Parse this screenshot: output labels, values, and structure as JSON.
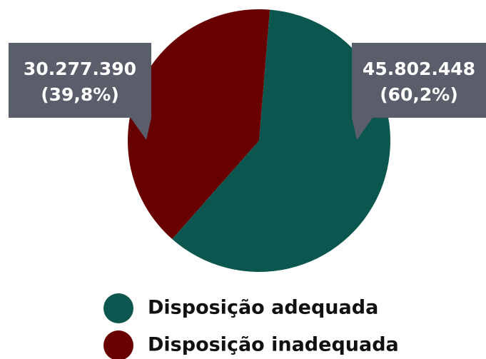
{
  "chart_data": {
    "type": "pie",
    "categories": [
      "Disposição adequada",
      "Disposição inadequada"
    ],
    "values": [
      45802448,
      30277390
    ],
    "value_labels": [
      "45.802.448",
      "30.277.390"
    ],
    "percents": [
      60.2,
      39.8
    ],
    "percent_labels": [
      "(60,2%)",
      "(39,8%)"
    ],
    "colors": [
      "#0b5750",
      "#690000"
    ],
    "legend": "bottom"
  }
}
